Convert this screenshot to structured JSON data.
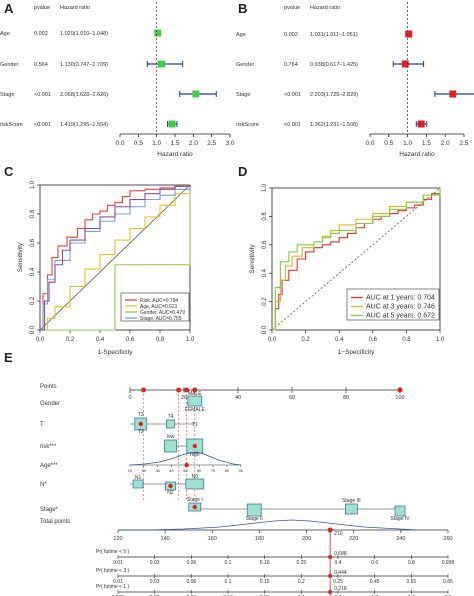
{
  "panel_labels": [
    "A",
    "B",
    "C",
    "D",
    "E"
  ],
  "forest_header": {
    "pvalue": "pvalue",
    "hr": "Hazard ratio"
  },
  "chart_data": [
    {
      "type": "forest",
      "panel": "A",
      "xlabel": "Hazard ratio",
      "xlim": [
        0,
        3.0
      ],
      "ticks": [
        "0.0",
        "0.5",
        "1.0",
        "1.5",
        "2.0",
        "2.5",
        "3.0"
      ],
      "tick_values": [
        0,
        0.5,
        1.0,
        1.5,
        2.0,
        2.5,
        3.0
      ],
      "marker_color": "#44cc44",
      "rows": [
        {
          "label": "Age",
          "p": "0.002",
          "hr_text": "1.029(1.010–1.048)",
          "hr": 1.029,
          "lo": 1.01,
          "hi": 1.048
        },
        {
          "label": "Gender",
          "p": "0.564",
          "hr_text": "1.130(0.747–1.709)",
          "hr": 1.13,
          "lo": 0.747,
          "hi": 1.709
        },
        {
          "label": "Stage",
          "p": "<0.001",
          "hr_text": "2.068(1.628–2.626)",
          "hr": 2.068,
          "lo": 1.628,
          "hi": 2.626
        },
        {
          "label": "riskScore",
          "p": "<0.001",
          "hr_text": "1.419(1.295–1.554)",
          "hr": 1.419,
          "lo": 1.295,
          "hi": 1.554
        }
      ]
    },
    {
      "type": "forest",
      "panel": "B",
      "xlabel": "Hazard ratio",
      "xlim": [
        0,
        2.5
      ],
      "ticks": [
        "0.0",
        "0.5",
        "1.0",
        "1.5",
        "2.0",
        "2.5"
      ],
      "tick_values": [
        0,
        0.5,
        1.0,
        1.5,
        2.0,
        2.5
      ],
      "marker_color": "#dd2222",
      "rows": [
        {
          "label": "Age",
          "p": "0.002",
          "hr_text": "1.031(1.011–1.051)",
          "hr": 1.031,
          "lo": 1.011,
          "hi": 1.051
        },
        {
          "label": "Gender",
          "p": "0.764",
          "hr_text": "0.938(0.617–1.425)",
          "hr": 0.938,
          "lo": 0.617,
          "hi": 1.425
        },
        {
          "label": "Stage",
          "p": "<0.001",
          "hr_text": "2.203(1.725–2.829)",
          "hr": 2.203,
          "lo": 1.725,
          "hi": 2.829
        },
        {
          "label": "riskScore",
          "p": "<0.001",
          "hr_text": "1.362(1.231–1.508)",
          "hr": 1.362,
          "lo": 1.231,
          "hi": 1.508
        }
      ]
    },
    {
      "type": "line",
      "panel": "C",
      "xlabel": "1-Specificity",
      "ylabel": "Sensitivity",
      "xlim": [
        0,
        1
      ],
      "ylim": [
        0,
        1
      ],
      "ticks": [
        "0.0",
        "0.2",
        "0.4",
        "0.6",
        "0.8",
        "1.0"
      ],
      "legend_position": "bottom-right",
      "series": [
        {
          "name": "Risk, AUC=0.794",
          "color": "#e8403a",
          "x": [
            0,
            0.02,
            0.05,
            0.08,
            0.12,
            0.18,
            0.25,
            0.3,
            0.35,
            0.4,
            0.45,
            0.5,
            0.55,
            0.6,
            0.7,
            0.8,
            0.9,
            1
          ],
          "y": [
            0,
            0.25,
            0.38,
            0.5,
            0.58,
            0.64,
            0.7,
            0.76,
            0.8,
            0.82,
            0.86,
            0.88,
            0.92,
            0.96,
            0.97,
            0.98,
            0.99,
            1
          ]
        },
        {
          "name": "Age, AUC=0.621",
          "color": "#e8c020",
          "x": [
            0,
            0.05,
            0.1,
            0.2,
            0.3,
            0.4,
            0.5,
            0.6,
            0.7,
            0.8,
            0.9,
            1
          ],
          "y": [
            0,
            0.08,
            0.16,
            0.3,
            0.42,
            0.52,
            0.62,
            0.7,
            0.78,
            0.86,
            0.94,
            1
          ]
        },
        {
          "name": "Gender, AUC=0.479",
          "color": "#90cc40",
          "x": [
            0,
            0.5,
            1
          ],
          "y": [
            0,
            0.45,
            1
          ]
        },
        {
          "name": "Stage, AUC=0.765",
          "color": "#7aa0d8",
          "x": [
            0,
            0.02,
            0.05,
            0.1,
            0.2,
            0.3,
            0.4,
            0.5,
            0.6,
            0.7,
            0.8,
            0.9,
            1
          ],
          "y": [
            0,
            0.18,
            0.35,
            0.48,
            0.6,
            0.68,
            0.75,
            0.8,
            0.85,
            0.9,
            0.93,
            0.97,
            1
          ]
        },
        {
          "name": "",
          "color": "#8d4aa0",
          "x": [
            0,
            0.03,
            0.06,
            0.1,
            0.15,
            0.2,
            0.3,
            0.4,
            0.5,
            0.6,
            0.7,
            0.8,
            0.9,
            1
          ],
          "y": [
            0,
            0.2,
            0.33,
            0.45,
            0.55,
            0.62,
            0.7,
            0.78,
            0.85,
            0.9,
            0.94,
            0.97,
            0.99,
            1
          ]
        }
      ]
    },
    {
      "type": "line",
      "panel": "D",
      "xlabel": "1−Specificity",
      "ylabel": "Sensitivity",
      "xlim": [
        0,
        1
      ],
      "ylim": [
        0,
        1
      ],
      "ticks": [
        "0.0",
        "0.2",
        "0.4",
        "0.6",
        "0.8",
        "1.0"
      ],
      "legend_position": "bottom-right",
      "series": [
        {
          "name": "AUC at 1 years: 0.704",
          "color": "#e03030",
          "x": [
            0,
            0.02,
            0.04,
            0.06,
            0.1,
            0.15,
            0.2,
            0.25,
            0.3,
            0.35,
            0.4,
            0.45,
            0.5,
            0.55,
            0.6,
            0.65,
            0.7,
            0.75,
            0.8,
            0.85,
            0.9,
            0.95,
            1
          ],
          "y": [
            0,
            0.15,
            0.25,
            0.35,
            0.42,
            0.5,
            0.55,
            0.58,
            0.6,
            0.62,
            0.65,
            0.68,
            0.72,
            0.75,
            0.78,
            0.8,
            0.82,
            0.84,
            0.86,
            0.88,
            0.92,
            0.96,
            1
          ]
        },
        {
          "name": "AUC at 3 years: 0.746",
          "color": "#e8b020",
          "x": [
            0,
            0.02,
            0.05,
            0.08,
            0.12,
            0.18,
            0.25,
            0.3,
            0.35,
            0.4,
            0.5,
            0.6,
            0.7,
            0.8,
            0.9,
            1
          ],
          "y": [
            0,
            0.2,
            0.35,
            0.45,
            0.52,
            0.58,
            0.62,
            0.66,
            0.7,
            0.74,
            0.78,
            0.82,
            0.87,
            0.9,
            0.95,
            1
          ]
        },
        {
          "name": "AUC at 5 years: 0.672",
          "color": "#80d040",
          "x": [
            0,
            0.02,
            0.05,
            0.1,
            0.15,
            0.2,
            0.25,
            0.3,
            0.35,
            0.4,
            0.5,
            0.6,
            0.7,
            0.8,
            0.9,
            1
          ],
          "y": [
            0,
            0.3,
            0.48,
            0.55,
            0.6,
            0.6,
            0.62,
            0.65,
            0.68,
            0.7,
            0.75,
            0.8,
            0.85,
            0.9,
            0.95,
            1
          ]
        }
      ]
    },
    {
      "type": "nomogram",
      "panel": "E",
      "points_label": "Points",
      "points_ticks": [
        "0",
        "20",
        "40",
        "60",
        "80",
        "100"
      ],
      "total_label": "Total points",
      "total_ticks": [
        "120",
        "140",
        "160",
        "180",
        "200",
        "220",
        "240",
        "260"
      ],
      "total_value": "210",
      "variables": [
        {
          "label": "Gender",
          "markers": [
            "MALE",
            "FEMALE"
          ]
        },
        {
          "label": "T",
          "markers": [
            "T3",
            "T2",
            "T4",
            "T1"
          ]
        },
        {
          "label": "risk***",
          "markers": [
            "low",
            "high"
          ]
        },
        {
          "label": "Age***",
          "ticks": [
            "10",
            "20",
            "30",
            "40",
            "50",
            "60",
            "70",
            "80",
            "90"
          ]
        },
        {
          "label": "N*",
          "markers": [
            "N1",
            "N2",
            "N0"
          ]
        },
        {
          "label": "Stage*",
          "markers": [
            "Stage I",
            "Stage II",
            "Stage III",
            "Stage IV"
          ]
        }
      ],
      "survival_rows": [
        {
          "label": "Pr( futime < 5 )",
          "ticks": [
            "0.01",
            "0.03",
            "0.06",
            "0.1",
            "0.16",
            "0.25",
            "0.4",
            "0.6",
            "0.8",
            "0.998"
          ],
          "value": "0.688"
        },
        {
          "label": "Pr( futime < 3 )",
          "ticks": [
            "0.01",
            "0.03",
            "0.06",
            "0.1",
            "0.15",
            "0.2",
            "0.25",
            "0.45",
            "0.65",
            "0.85"
          ],
          "value": "0.444"
        },
        {
          "label": "Pr( futime < 1 )",
          "ticks": [
            "0.005",
            "0.02",
            "0.04",
            "0.06",
            "0.08",
            "0.1",
            "0.2",
            "0.3",
            "0.4",
            "0.6"
          ],
          "value": "0.218"
        }
      ]
    }
  ]
}
